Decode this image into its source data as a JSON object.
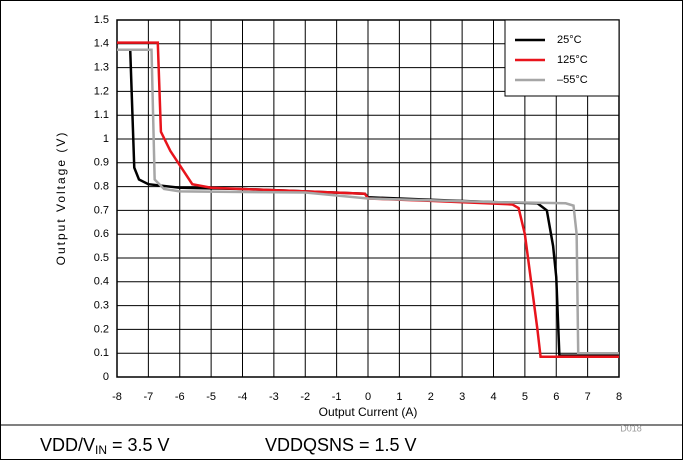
{
  "chart_data": {
    "type": "line",
    "xlabel": "Output Current (A)",
    "ylabel": "Output Voltage (V)",
    "note": "D018",
    "caption": [
      "VDD/V",
      "IN",
      " = 3.5 V",
      "VDDQSNS = 1.5 V"
    ],
    "xlim": [
      -8,
      8
    ],
    "xticks": [
      -8,
      -7,
      -6,
      -5,
      -4,
      -3,
      -2,
      -1,
      0,
      1,
      2,
      3,
      4,
      5,
      6,
      7,
      8
    ],
    "ylim": [
      0,
      1.5
    ],
    "yticks": [
      0,
      0.1,
      0.2,
      0.3,
      0.4,
      0.5,
      0.6,
      0.7,
      0.8,
      0.9,
      1,
      1.1,
      1.2,
      1.3,
      1.4,
      1.5
    ],
    "grid": true,
    "legend": "upper right",
    "series": [
      {
        "name": "25°C",
        "color": "#000000",
        "x": [
          -7.58,
          -7.45,
          -7.3,
          -7.0,
          -6,
          -4,
          -2,
          -0.1,
          0,
          2,
          4,
          5.4,
          5.7,
          5.9,
          6.0,
          6.1,
          8
        ],
        "values": [
          1.38,
          0.88,
          0.83,
          0.81,
          0.795,
          0.79,
          0.78,
          0.77,
          0.755,
          0.745,
          0.735,
          0.73,
          0.7,
          0.55,
          0.42,
          0.09,
          0.09
        ]
      },
      {
        "name": "125°C",
        "color": "#e8141c",
        "x": [
          -8,
          -6.7,
          -6.6,
          -6.3,
          -6,
          -5.6,
          -5,
          -2,
          -0.1,
          0,
          2,
          4.6,
          4.8,
          5.0,
          5.2,
          5.4,
          5.5,
          8
        ],
        "values": [
          1.405,
          1.405,
          1.03,
          0.95,
          0.89,
          0.81,
          0.795,
          0.78,
          0.77,
          0.75,
          0.74,
          0.725,
          0.71,
          0.6,
          0.4,
          0.2,
          0.085,
          0.085
        ]
      },
      {
        "name": "–55°C",
        "color": "#a6a6a6",
        "x": [
          -8,
          -6.9,
          -6.8,
          -6.5,
          -6,
          -2,
          0,
          4,
          6.3,
          6.55,
          6.65,
          6.7,
          8
        ],
        "values": [
          1.375,
          1.375,
          0.83,
          0.79,
          0.78,
          0.775,
          0.75,
          0.735,
          0.73,
          0.72,
          0.6,
          0.1,
          0.1
        ]
      }
    ]
  }
}
